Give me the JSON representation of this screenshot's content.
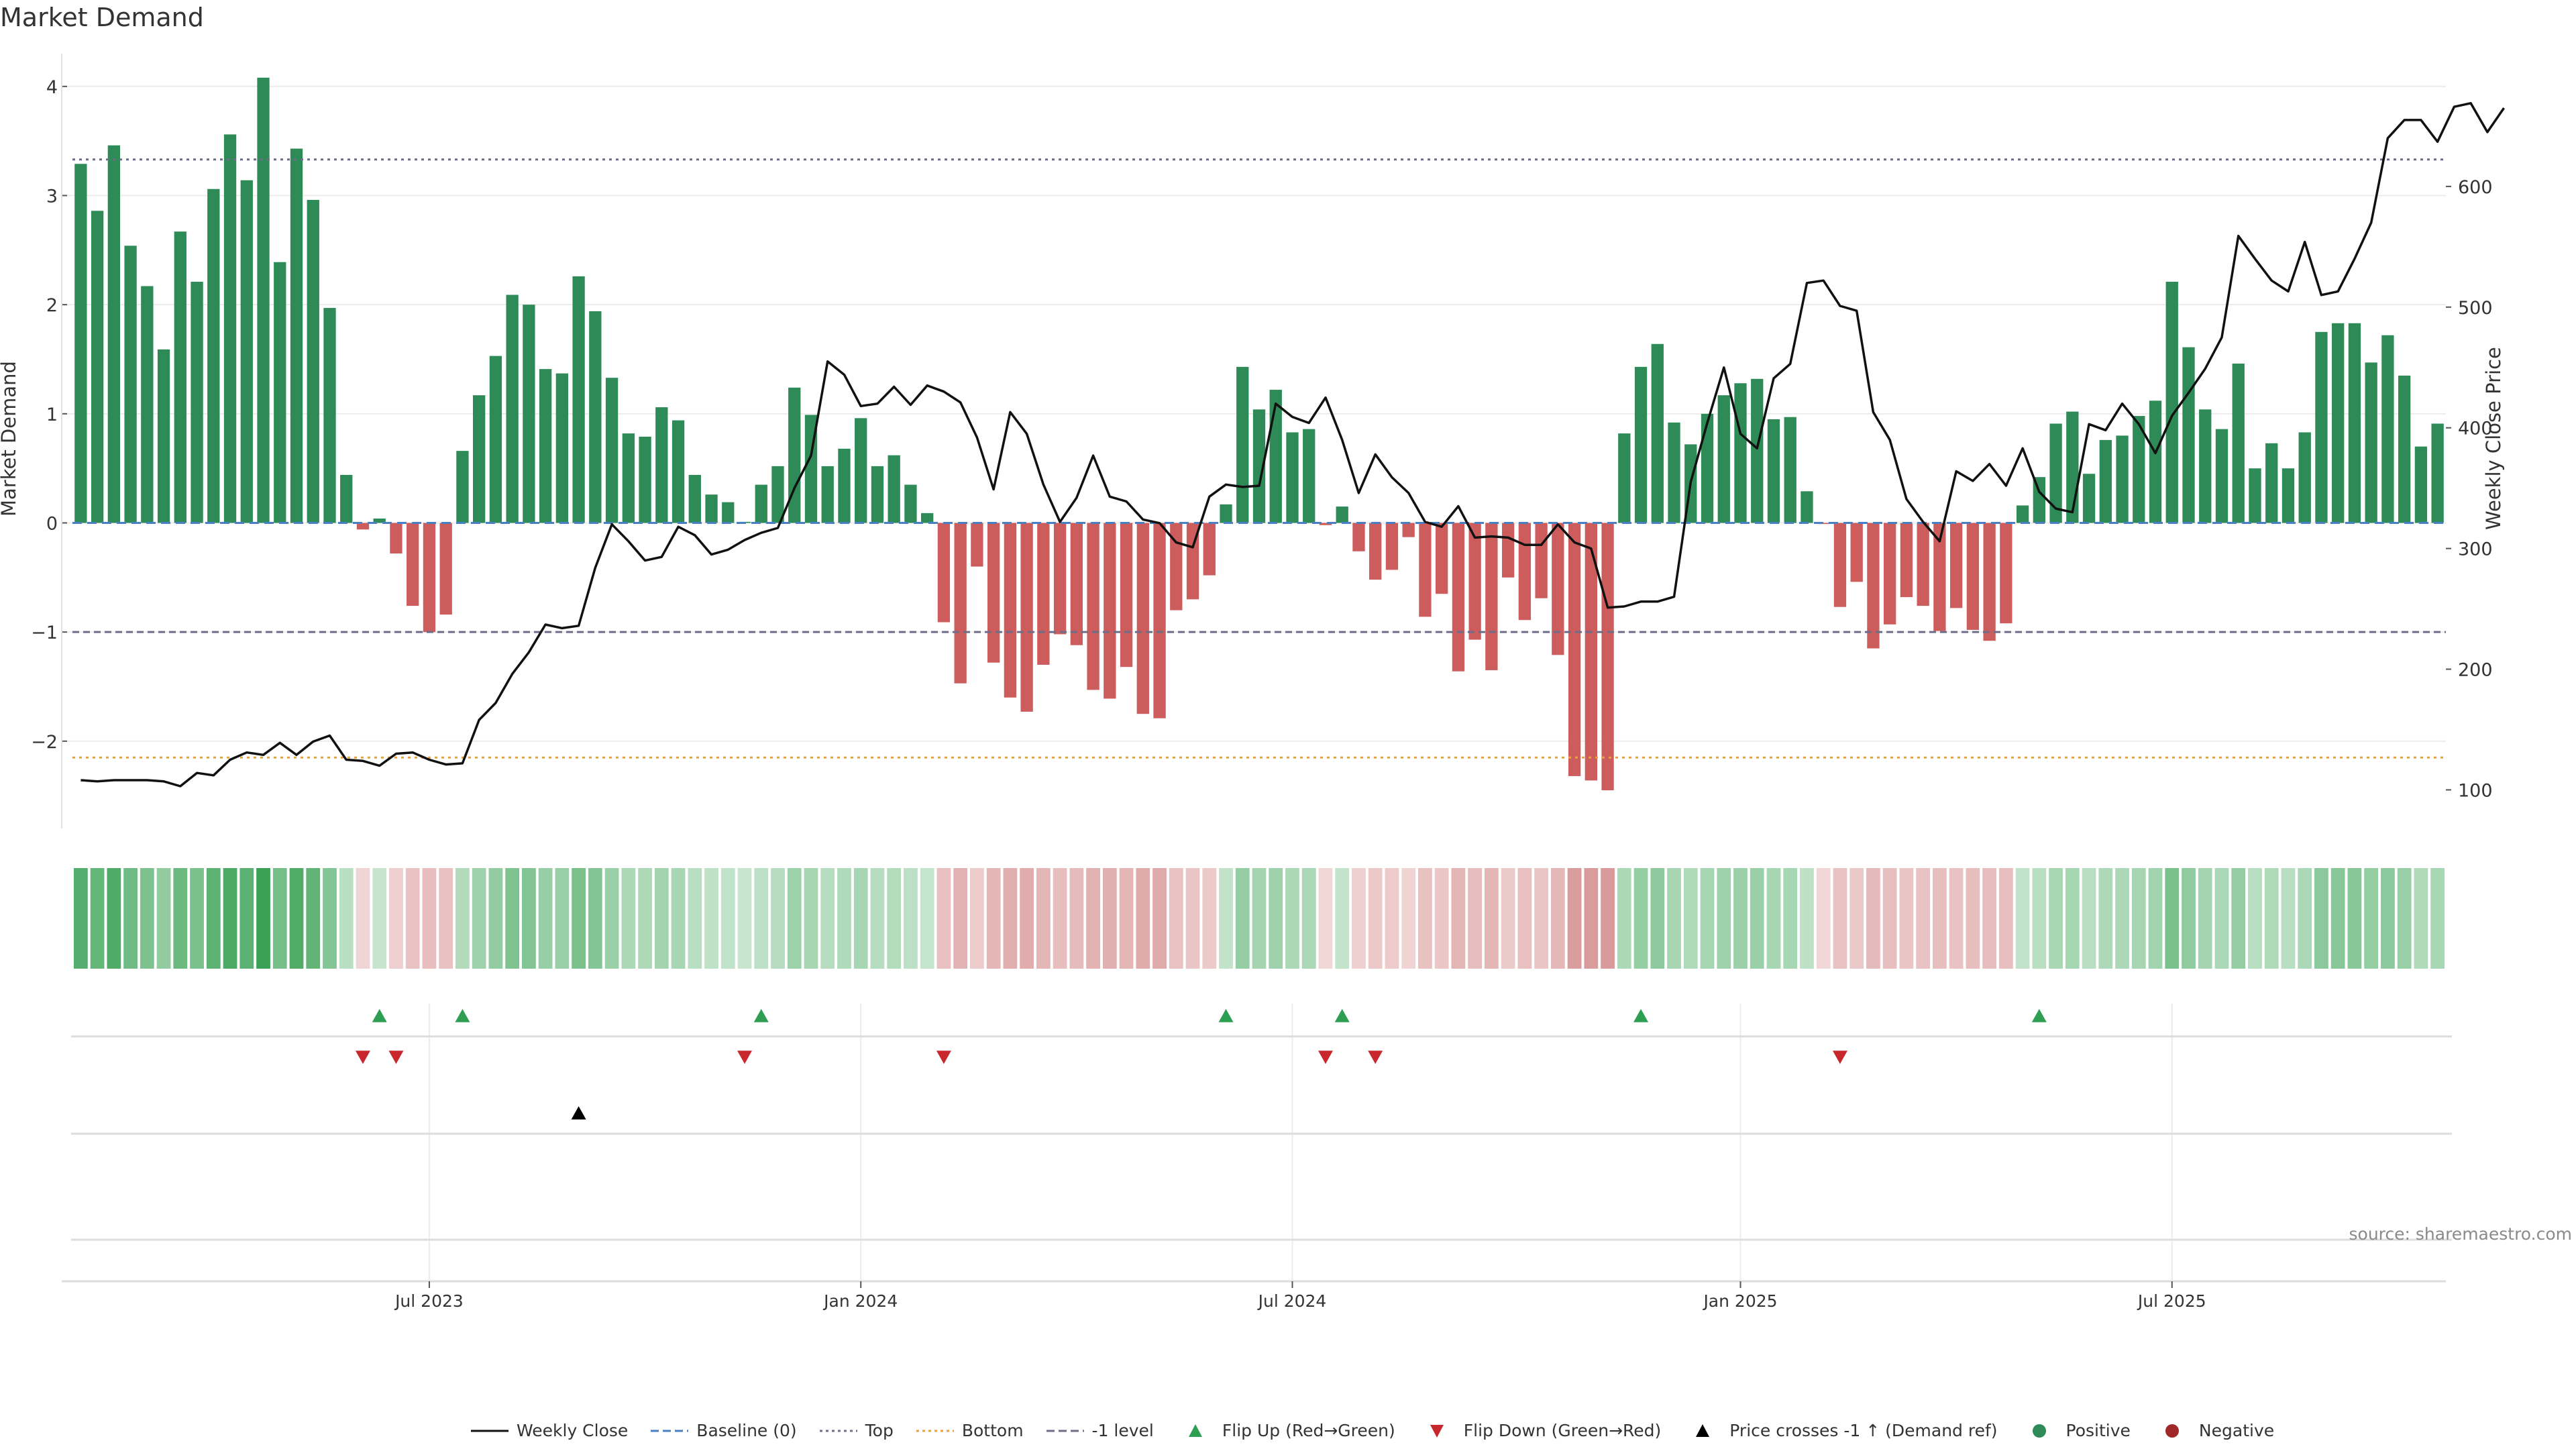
{
  "chart_data": {
    "type": "bar",
    "title": "Market Demand",
    "ylabel": "Market Demand",
    "y2label": "Weekly Close Price",
    "ylim": [
      -2.8,
      4.3
    ],
    "y2lim": [
      68,
      710
    ],
    "yticks": [
      -2,
      -1,
      0,
      1,
      2,
      3,
      4
    ],
    "yticklabels": [
      "−2",
      "−1",
      "0",
      "1",
      "2",
      "3",
      "4"
    ],
    "y2ticks": [
      100,
      200,
      300,
      400,
      500,
      600
    ],
    "xticks": [
      {
        "index": 21,
        "label": "Jul 2023"
      },
      {
        "index": 47,
        "label": "Jan 2024"
      },
      {
        "index": 73,
        "label": "Jul 2024"
      },
      {
        "index": 100,
        "label": "Jan 2025"
      },
      {
        "index": 126,
        "label": "Jul 2025"
      }
    ],
    "reference_lines": {
      "top": 3.33,
      "bottom": -2.15,
      "minus_one": -1.0,
      "baseline": 0
    },
    "demand": [
      3.29,
      2.86,
      3.46,
      2.54,
      2.17,
      1.59,
      2.67,
      2.21,
      3.06,
      3.56,
      3.14,
      4.08,
      2.39,
      3.43,
      2.96,
      1.97,
      0.44,
      -0.06,
      0.04,
      -0.28,
      -0.76,
      -1.0,
      -0.84,
      0.66,
      1.17,
      1.53,
      2.09,
      2.0,
      1.41,
      1.37,
      2.26,
      1.94,
      1.33,
      0.82,
      0.79,
      1.06,
      0.94,
      0.44,
      0.26,
      0.19,
      0.01,
      0.35,
      0.52,
      1.24,
      0.99,
      0.52,
      0.68,
      0.96,
      0.52,
      0.62,
      0.35,
      0.09,
      -0.91,
      -1.47,
      -0.4,
      -1.28,
      -1.6,
      -1.73,
      -1.3,
      -1.02,
      -1.12,
      -1.53,
      -1.61,
      -1.32,
      -1.75,
      -1.79,
      -0.8,
      -0.7,
      -0.48,
      0.17,
      1.43,
      1.04,
      1.22,
      0.83,
      0.86,
      -0.02,
      0.15,
      -0.26,
      -0.52,
      -0.43,
      -0.13,
      -0.86,
      -0.65,
      -1.36,
      -1.07,
      -1.35,
      -0.5,
      -0.89,
      -0.69,
      -1.21,
      -2.32,
      -2.36,
      -2.45,
      0.82,
      1.43,
      1.64,
      0.92,
      0.72,
      1.0,
      1.17,
      1.28,
      1.32,
      0.95,
      0.97,
      0.29,
      -0.01,
      -0.77,
      -0.54,
      -1.15,
      -0.93,
      -0.68,
      -0.76,
      -0.99,
      -0.78,
      -0.98,
      -1.08,
      -0.92,
      0.16,
      0.42,
      0.91,
      1.02,
      0.45,
      0.76,
      0.8,
      0.98,
      1.12,
      2.21,
      1.61,
      1.04,
      0.86,
      1.46,
      0.5,
      0.73,
      0.5,
      0.83,
      1.75,
      1.83,
      1.83,
      1.47,
      1.72,
      1.35,
      0.7,
      0.91
    ],
    "close": [
      108,
      107,
      108,
      108,
      108,
      107,
      103,
      114,
      112,
      125,
      131,
      129,
      139,
      129,
      140,
      145,
      125,
      124,
      120,
      130,
      131,
      125,
      121,
      122,
      158,
      172,
      196,
      214,
      237,
      234,
      236,
      284,
      320,
      306,
      290,
      293,
      318,
      311,
      295,
      299,
      307,
      313,
      317,
      350,
      377,
      455,
      444,
      418,
      420,
      434,
      419,
      435,
      430,
      421,
      392,
      349,
      413,
      395,
      353,
      322,
      342,
      377,
      343,
      339,
      324,
      321,
      305,
      301,
      343,
      353,
      351,
      352,
      420,
      409,
      404,
      425,
      390,
      346,
      378,
      359,
      346,
      322,
      318,
      335,
      309,
      310,
      309,
      303,
      303,
      320,
      305,
      300,
      251,
      252,
      256,
      256,
      260,
      355,
      404,
      450,
      395,
      383,
      441,
      453,
      520,
      522,
      501,
      497,
      413,
      390,
      341,
      322,
      306,
      364,
      356,
      370,
      352,
      383,
      347,
      333,
      330,
      403,
      398,
      420,
      403,
      379,
      410,
      429,
      449,
      475,
      559,
      540,
      522,
      513,
      554,
      510,
      513,
      540,
      570,
      640,
      655,
      655,
      637,
      666,
      669,
      645,
      665
    ],
    "flip_up": [
      18,
      23,
      41,
      69,
      76,
      94,
      118
    ],
    "flip_down": [
      17,
      19,
      40,
      52,
      75,
      78,
      106
    ],
    "price_cross": [
      30
    ],
    "legend": [
      {
        "label": "Weekly Close",
        "color": "#111111",
        "kind": "line"
      },
      {
        "label": "Baseline (0)",
        "color": "#4a7fc1",
        "kind": "dash"
      },
      {
        "label": "Top",
        "color": "#6d6d8a",
        "kind": "dot"
      },
      {
        "label": "Bottom",
        "color": "#e8a040",
        "kind": "dot"
      },
      {
        "label": "-1 level",
        "color": "#6d6d8a",
        "kind": "dash"
      },
      {
        "label": "Flip Up (Red→Green)",
        "color": "#2e9e52",
        "kind": "tri-up"
      },
      {
        "label": "Flip Down (Green→Red)",
        "color": "#c8282d",
        "kind": "tri-down"
      },
      {
        "label": "Price crosses -1 ↑ (Demand ref)",
        "color": "#000000",
        "kind": "tri-up"
      },
      {
        "label": "Positive",
        "color": "#2e8b57",
        "kind": "circle"
      },
      {
        "label": "Negative",
        "color": "#a02828",
        "kind": "circle"
      }
    ],
    "colors": {
      "positive": "#2e8b57",
      "negative": "#cd5c5c",
      "close": "#111111",
      "baseline": "#4a7fc1"
    }
  },
  "source": "source: sharemaestro.com"
}
